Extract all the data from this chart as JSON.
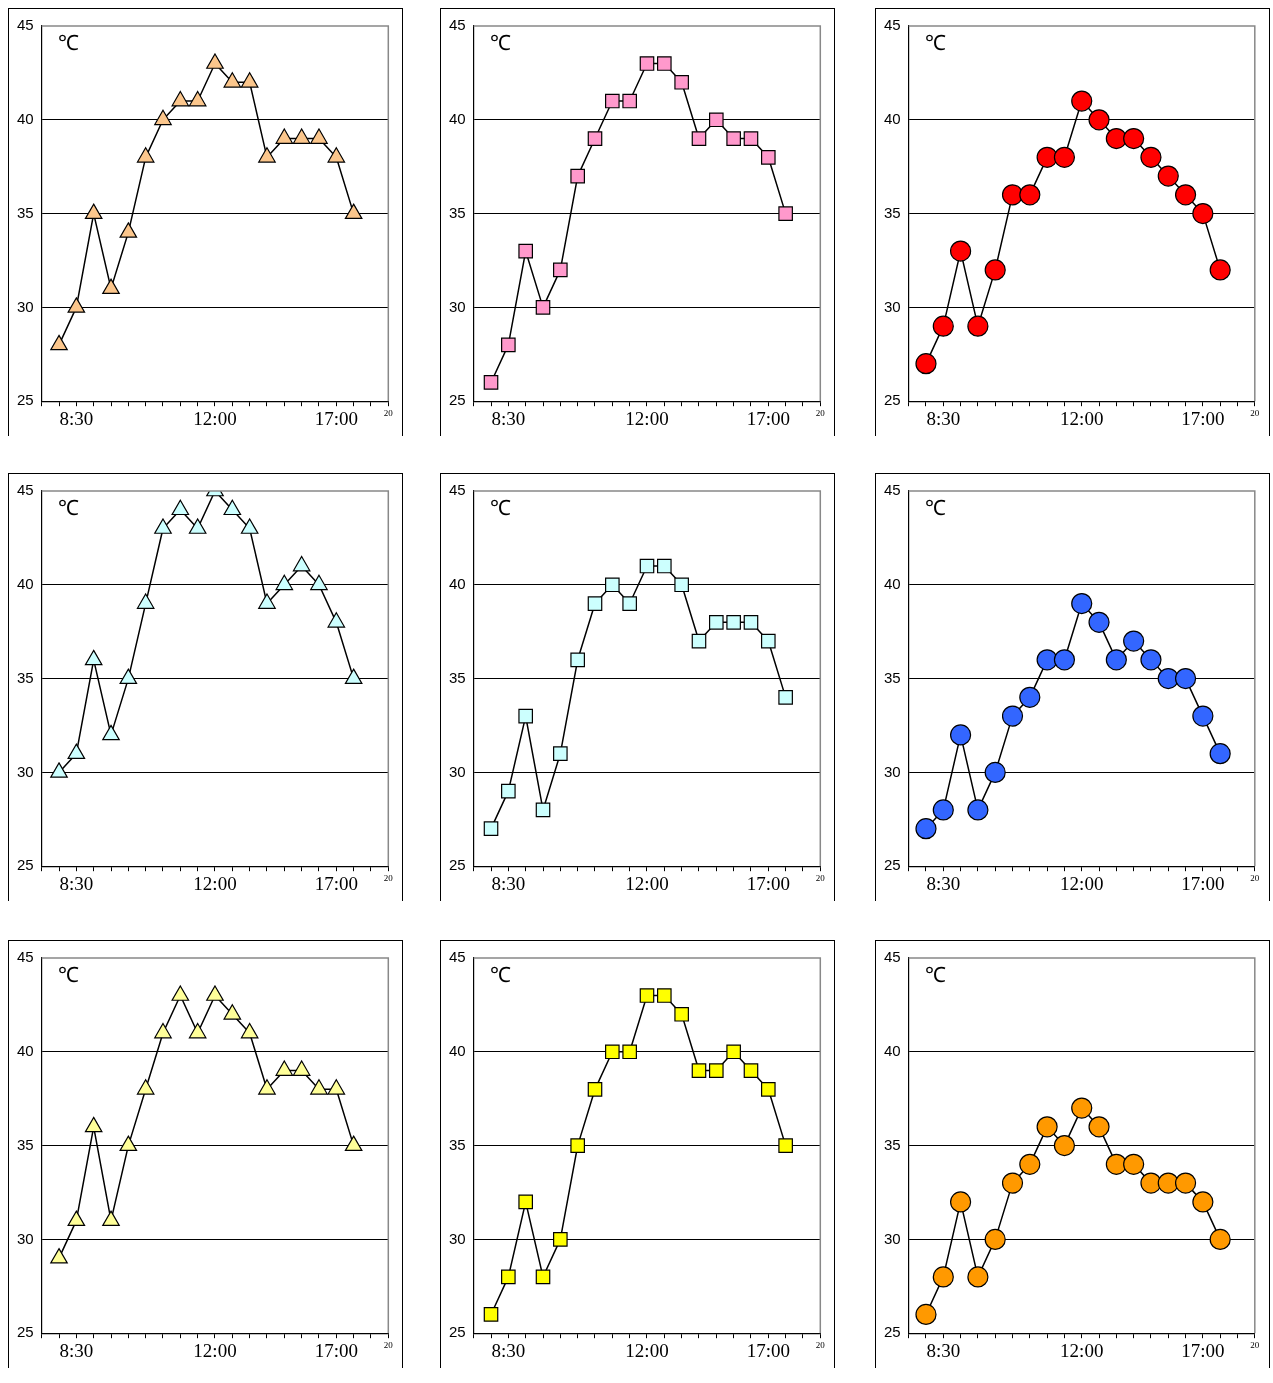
{
  "chart_data": [
    {
      "type": "line",
      "ylabel": "℃",
      "categories": [
        null,
        null,
        "8:30",
        null,
        null,
        null,
        null,
        null,
        null,
        null,
        "12:00",
        null,
        null,
        null,
        null,
        null,
        null,
        "17:00",
        null,
        null,
        "20"
      ],
      "series": [
        {
          "color": "#fbc68c",
          "values": [
            null,
            28,
            30,
            35,
            31,
            34,
            38,
            40,
            41,
            41,
            43,
            42,
            42,
            38,
            39,
            39,
            39,
            38,
            35,
            null,
            null
          ]
        }
      ],
      "ylim": [
        25,
        45
      ],
      "yticks": [
        25,
        30,
        35,
        40,
        45
      ],
      "grid": "y",
      "marker": "triangle",
      "legend": false
    },
    {
      "type": "line",
      "ylabel": "℃",
      "categories": [
        null,
        null,
        "8:30",
        null,
        null,
        null,
        null,
        null,
        null,
        null,
        "12:00",
        null,
        null,
        null,
        null,
        null,
        null,
        "17:00",
        null,
        null,
        "20"
      ],
      "series": [
        {
          "color": "#ff99cc",
          "values": [
            null,
            26,
            28,
            33,
            30,
            32,
            37,
            39,
            41,
            41,
            43,
            43,
            42,
            39,
            40,
            39,
            39,
            38,
            35,
            null,
            null
          ]
        }
      ],
      "ylim": [
        25,
        45
      ],
      "yticks": [
        25,
        30,
        35,
        40,
        45
      ],
      "grid": "y",
      "marker": "square",
      "legend": false
    },
    {
      "type": "line",
      "ylabel": "℃",
      "categories": [
        null,
        null,
        "8:30",
        null,
        null,
        null,
        null,
        null,
        null,
        null,
        "12:00",
        null,
        null,
        null,
        null,
        null,
        null,
        "17:00",
        null,
        null,
        "20"
      ],
      "series": [
        {
          "color": "#ff0000",
          "values": [
            null,
            27,
            29,
            33,
            29,
            32,
            36,
            36,
            38,
            38,
            41,
            40,
            39,
            39,
            38,
            37,
            36,
            35,
            32,
            null,
            null
          ]
        }
      ],
      "ylim": [
        25,
        45
      ],
      "yticks": [
        25,
        30,
        35,
        40,
        45
      ],
      "grid": "y",
      "marker": "circle",
      "legend": false
    },
    {
      "type": "line",
      "ylabel": "℃",
      "categories": [
        null,
        null,
        "8:30",
        null,
        null,
        null,
        null,
        null,
        null,
        null,
        "12:00",
        null,
        null,
        null,
        null,
        null,
        null,
        "17:00",
        null,
        null,
        "20"
      ],
      "series": [
        {
          "color": "#ccffff",
          "values": [
            null,
            30,
            31,
            36,
            32,
            35,
            39,
            43,
            44,
            43,
            45,
            44,
            43,
            39,
            40,
            41,
            40,
            38,
            35,
            null,
            null
          ]
        }
      ],
      "ylim": [
        25,
        45
      ],
      "yticks": [
        25,
        30,
        35,
        40,
        45
      ],
      "grid": "y",
      "marker": "triangle",
      "legend": false
    },
    {
      "type": "line",
      "ylabel": "℃",
      "categories": [
        null,
        null,
        "8:30",
        null,
        null,
        null,
        null,
        null,
        null,
        null,
        "12:00",
        null,
        null,
        null,
        null,
        null,
        null,
        "17:00",
        null,
        null,
        "20"
      ],
      "series": [
        {
          "color": "#ccfffe",
          "values": [
            null,
            27,
            29,
            33,
            28,
            31,
            36,
            39,
            40,
            39,
            41,
            41,
            40,
            37,
            38,
            38,
            38,
            37,
            34,
            null,
            null
          ]
        }
      ],
      "ylim": [
        25,
        45
      ],
      "yticks": [
        25,
        30,
        35,
        40,
        45
      ],
      "grid": "y",
      "marker": "square",
      "legend": false
    },
    {
      "type": "line",
      "ylabel": "℃",
      "categories": [
        null,
        null,
        "8:30",
        null,
        null,
        null,
        null,
        null,
        null,
        null,
        "12:00",
        null,
        null,
        null,
        null,
        null,
        null,
        "17:00",
        null,
        null,
        "20"
      ],
      "series": [
        {
          "color": "#3366ff",
          "values": [
            null,
            27,
            28,
            32,
            28,
            30,
            33,
            34,
            36,
            36,
            39,
            38,
            36,
            37,
            36,
            35,
            35,
            33,
            31,
            null,
            null
          ]
        }
      ],
      "ylim": [
        25,
        45
      ],
      "yticks": [
        25,
        30,
        35,
        40,
        45
      ],
      "grid": "y",
      "marker": "circle",
      "legend": false
    },
    {
      "type": "line",
      "ylabel": "℃",
      "categories": [
        null,
        null,
        "8:30",
        null,
        null,
        null,
        null,
        null,
        null,
        null,
        "12:00",
        null,
        null,
        null,
        null,
        null,
        null,
        "17:00",
        null,
        null,
        "20"
      ],
      "series": [
        {
          "color": "#ffff99",
          "values": [
            null,
            29,
            31,
            36,
            31,
            35,
            38,
            41,
            43,
            41,
            43,
            42,
            41,
            38,
            39,
            39,
            38,
            38,
            35,
            null,
            null
          ]
        }
      ],
      "ylim": [
        25,
        45
      ],
      "yticks": [
        25,
        30,
        35,
        40,
        45
      ],
      "grid": "y",
      "marker": "triangle",
      "legend": false
    },
    {
      "type": "line",
      "ylabel": "℃",
      "categories": [
        null,
        null,
        "8:30",
        null,
        null,
        null,
        null,
        null,
        null,
        null,
        "12:00",
        null,
        null,
        null,
        null,
        null,
        null,
        "17:00",
        null,
        null,
        "20"
      ],
      "series": [
        {
          "color": "#ffff00",
          "values": [
            null,
            26,
            28,
            32,
            28,
            30,
            35,
            38,
            40,
            40,
            43,
            43,
            42,
            39,
            39,
            40,
            39,
            38,
            35,
            null,
            null
          ]
        }
      ],
      "ylim": [
        25,
        45
      ],
      "yticks": [
        25,
        30,
        35,
        40,
        45
      ],
      "grid": "y",
      "marker": "square",
      "legend": false
    },
    {
      "type": "line",
      "ylabel": "℃",
      "categories": [
        null,
        null,
        "8:30",
        null,
        null,
        null,
        null,
        null,
        null,
        null,
        "12:00",
        null,
        null,
        null,
        null,
        null,
        null,
        "17:00",
        null,
        null,
        "20"
      ],
      "series": [
        {
          "color": "#ff9900",
          "values": [
            null,
            26,
            28,
            32,
            28,
            30,
            33,
            34,
            36,
            35,
            37,
            36,
            34,
            34,
            33,
            33,
            33,
            32,
            30,
            null,
            null
          ]
        }
      ],
      "ylim": [
        25,
        45
      ],
      "yticks": [
        25,
        30,
        35,
        40,
        45
      ],
      "grid": "y",
      "marker": "circle",
      "legend": false
    }
  ]
}
